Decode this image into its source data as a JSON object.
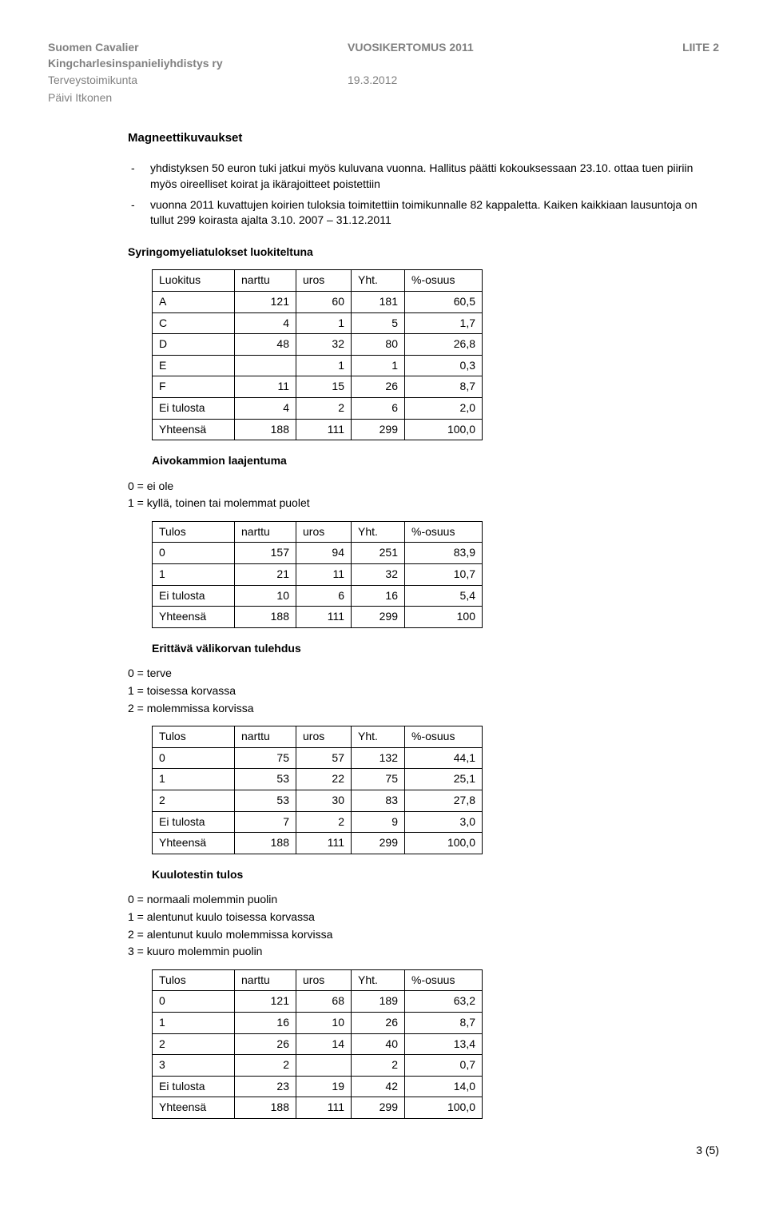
{
  "header": {
    "org_line1": "Suomen Cavalier",
    "org_line2": "Kingcharlesinspanieliyhdistys ry",
    "sub1": "Terveystoimikunta",
    "sub2": "Päivi Itkonen",
    "center_title": "VUOSIKERTOMUS 2011",
    "center_date": "19.3.2012",
    "right": "LIITE 2"
  },
  "footer": "3 (5)",
  "section_title": "Magneettikuvaukset",
  "bullets": [
    "yhdistyksen 50 euron tuki jatkui myös kuluvana vuonna. Hallitus päätti kokouksessaan 23.10. ottaa tuen piiriin myös oireelliset koirat ja ikärajoitteet poistettiin",
    "vuonna 2011 kuvattujen koirien tuloksia toimitettiin toimikunnalle 82 kappaletta. Kaiken kaikkiaan lausuntoja on tullut 299 koirasta ajalta 3.10. 2007 – 31.12.2011"
  ],
  "tables": [
    {
      "title": "Syringomyeliatulokset luokiteltuna",
      "first_header": "Luokitus",
      "columns": [
        "narttu",
        "uros",
        "Yht.",
        "%-osuus"
      ],
      "rows": [
        [
          "A",
          "121",
          "60",
          "181",
          "60,5"
        ],
        [
          "C",
          "4",
          "1",
          "5",
          "1,7"
        ],
        [
          "D",
          "48",
          "32",
          "80",
          "26,8"
        ],
        [
          "E",
          "",
          "1",
          "1",
          "0,3"
        ],
        [
          "F",
          "11",
          "15",
          "26",
          "8,7"
        ],
        [
          "Ei tulosta",
          "4",
          "2",
          "6",
          "2,0"
        ],
        [
          "Yhteensä",
          "188",
          "111",
          "299",
          "100,0"
        ]
      ]
    },
    {
      "title": "Aivokammion laajentuma",
      "legend": [
        "0 = ei ole",
        "1 = kyllä, toinen tai molemmat puolet"
      ],
      "first_header": "Tulos",
      "columns": [
        "narttu",
        "uros",
        "Yht.",
        "%-osuus"
      ],
      "rows": [
        [
          "0",
          "157",
          "94",
          "251",
          "83,9"
        ],
        [
          "1",
          "21",
          "11",
          "32",
          "10,7"
        ],
        [
          "Ei tulosta",
          "10",
          "6",
          "16",
          "5,4"
        ],
        [
          "Yhteensä",
          "188",
          "111",
          "299",
          "100"
        ]
      ]
    },
    {
      "title": "Erittävä välikorvan tulehdus",
      "legend": [
        "0 = terve",
        "1 = toisessa korvassa",
        "2 = molemmissa korvissa"
      ],
      "first_header": "Tulos",
      "columns": [
        "narttu",
        "uros",
        "Yht.",
        "%-osuus"
      ],
      "rows": [
        [
          "0",
          "75",
          "57",
          "132",
          "44,1"
        ],
        [
          "1",
          "53",
          "22",
          "75",
          "25,1"
        ],
        [
          "2",
          "53",
          "30",
          "83",
          "27,8"
        ],
        [
          "Ei tulosta",
          "7",
          "2",
          "9",
          "3,0"
        ],
        [
          "Yhteensä",
          "188",
          "111",
          "299",
          "100,0"
        ]
      ]
    },
    {
      "title": "Kuulotestin tulos",
      "legend": [
        "0 = normaali molemmin puolin",
        "1 = alentunut kuulo toisessa korvassa",
        "2 = alentunut kuulo molemmissa korvissa",
        "3 = kuuro molemmin puolin"
      ],
      "first_header": "Tulos",
      "columns": [
        "narttu",
        "uros",
        "Yht.",
        "%-osuus"
      ],
      "rows": [
        [
          "0",
          "121",
          "68",
          "189",
          "63,2"
        ],
        [
          "1",
          "16",
          "10",
          "26",
          "8,7"
        ],
        [
          "2",
          "26",
          "14",
          "40",
          "13,4"
        ],
        [
          "3",
          "2",
          "",
          "2",
          "0,7"
        ],
        [
          "Ei tulosta",
          "23",
          "19",
          "42",
          "14,0"
        ],
        [
          "Yhteensä",
          "188",
          "111",
          "299",
          "100,0"
        ]
      ]
    }
  ]
}
